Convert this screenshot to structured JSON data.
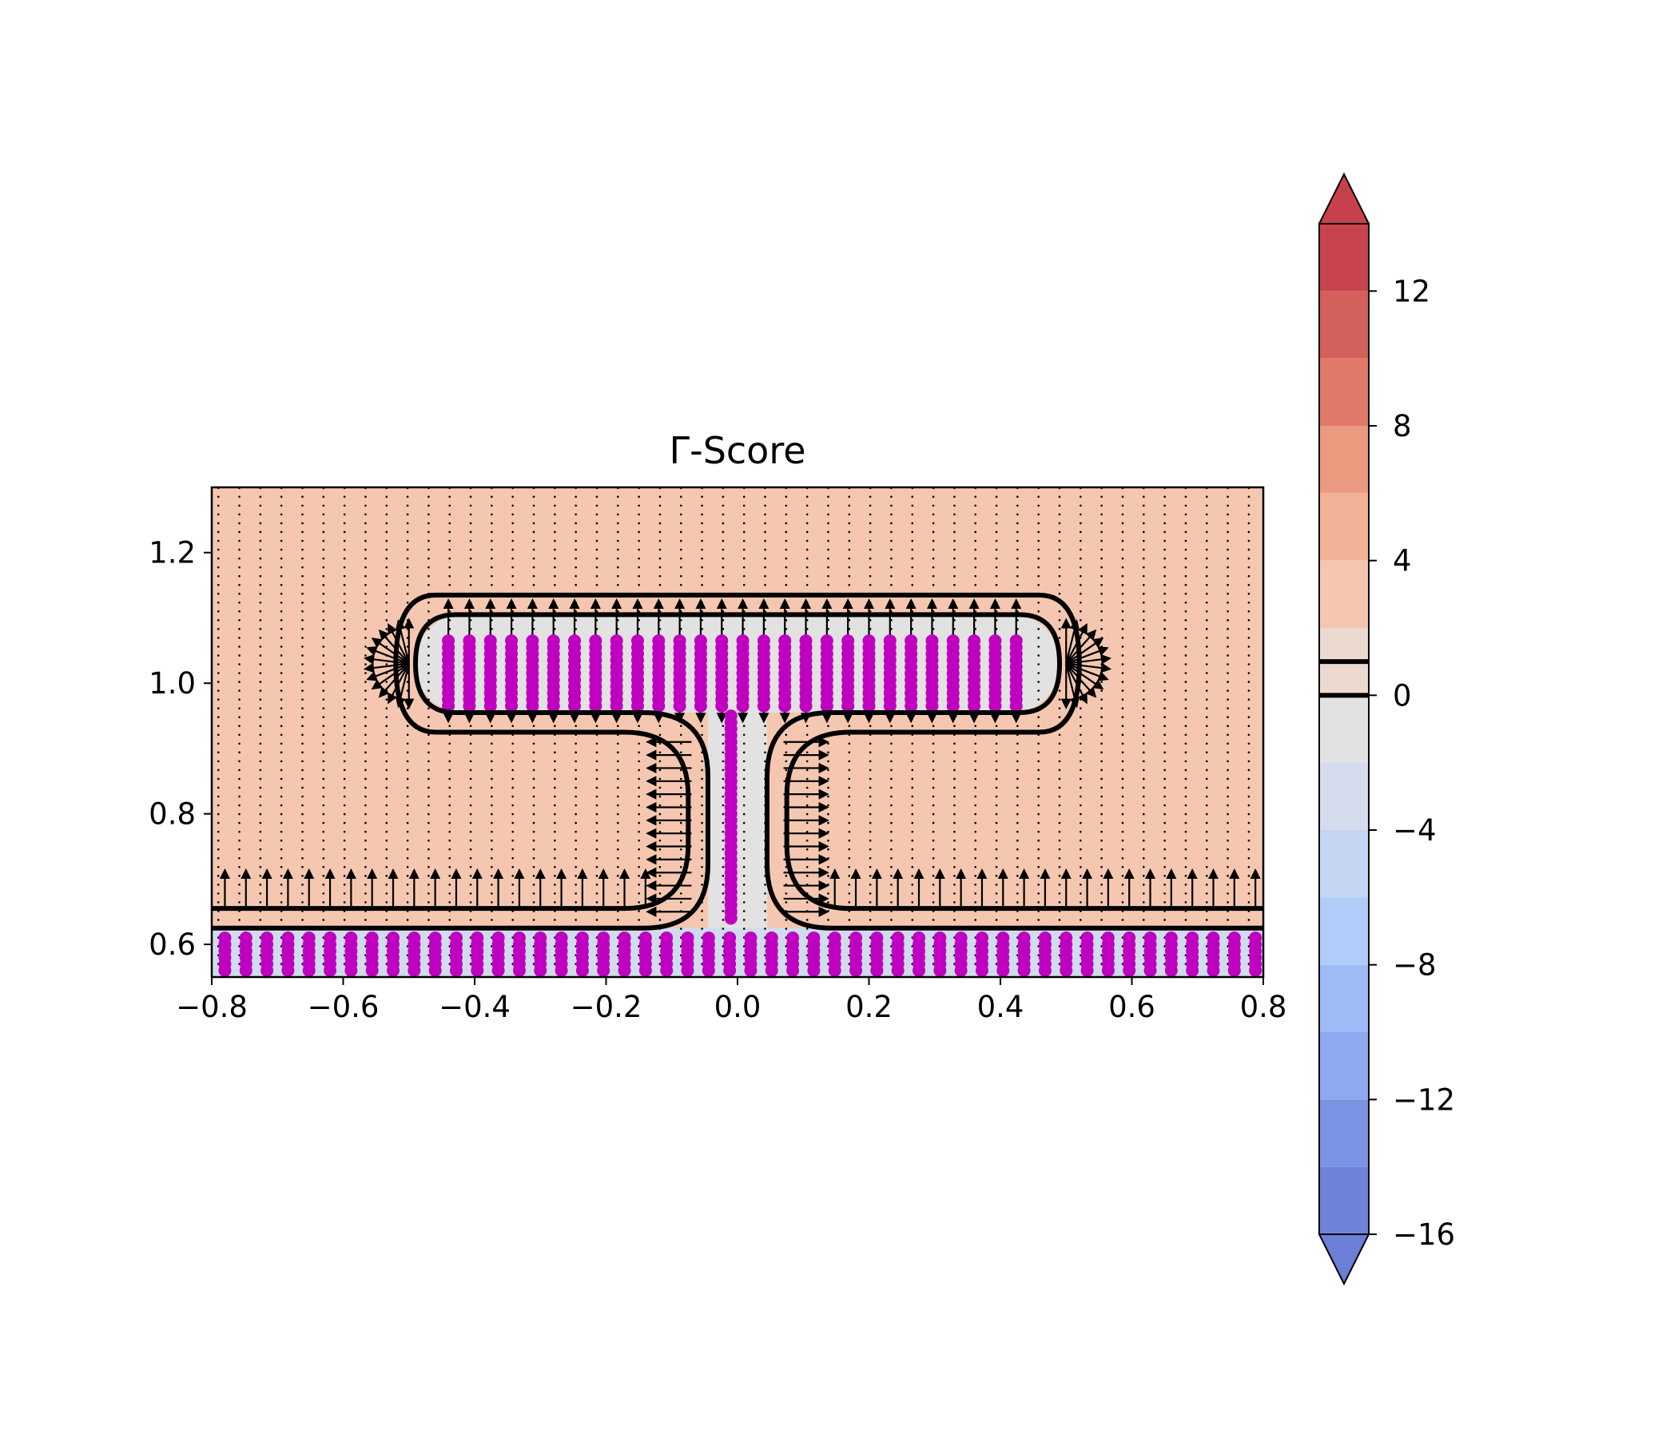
{
  "chart_data": {
    "type": "heatmap",
    "title": "Γ-Score",
    "xlabel": "",
    "ylabel": "",
    "xlim": [
      -0.8,
      0.8
    ],
    "ylim": [
      0.55,
      1.3
    ],
    "x_ticks": [
      "−0.8",
      "−0.6",
      "−0.4",
      "−0.2",
      "0.0",
      "0.2",
      "0.4",
      "0.6",
      "0.8"
    ],
    "x_tick_values": [
      -0.8,
      -0.6,
      -0.4,
      -0.2,
      0.0,
      0.2,
      0.4,
      0.6,
      0.8
    ],
    "y_ticks": [
      "0.6",
      "0.8",
      "1.0",
      "1.2"
    ],
    "y_tick_values": [
      0.6,
      0.8,
      1.0,
      1.2
    ],
    "grid": false,
    "background_level_color": "#f5c7b0",
    "interior_color": "#e2e2e2",
    "bottom_strip_color": "#d0dcee",
    "scatter_color": "#c000c0",
    "contour_color": "#000000",
    "shape_regions": {
      "top_bar": {
        "x_range": [
          -0.49,
          0.49
        ],
        "y_range": [
          0.955,
          1.105
        ]
      },
      "stem": {
        "x_range": [
          -0.045,
          0.045
        ],
        "y_range": [
          0.62,
          0.955
        ]
      },
      "base_surface": {
        "y": 0.625
      }
    },
    "colorbar": {
      "ticks": [
        "12",
        "8",
        "4",
        "0",
        "−4",
        "−8",
        "−12",
        "−16"
      ],
      "tick_values": [
        12,
        8,
        4,
        0,
        -4,
        -8,
        -12,
        -16
      ],
      "range": [
        -16,
        14
      ],
      "extend": "both",
      "zero_contour_lines": [
        1,
        0
      ],
      "levels": [
        {
          "from": 12,
          "to": 14,
          "color": "#c9434f"
        },
        {
          "from": 10,
          "to": 12,
          "color": "#d4605b"
        },
        {
          "from": 8,
          "to": 10,
          "color": "#e0796a"
        },
        {
          "from": 6,
          "to": 8,
          "color": "#eb9a7f"
        },
        {
          "from": 4,
          "to": 6,
          "color": "#f3b297"
        },
        {
          "from": 2,
          "to": 4,
          "color": "#f5c7b0"
        },
        {
          "from": 0,
          "to": 2,
          "color": "#ecd9cf"
        },
        {
          "from": -2,
          "to": 0,
          "color": "#e2e2e2"
        },
        {
          "from": -4,
          "to": -2,
          "color": "#d4dced"
        },
        {
          "from": -6,
          "to": -4,
          "color": "#c5d6f4"
        },
        {
          "from": -8,
          "to": -6,
          "color": "#b2ccfa"
        },
        {
          "from": -10,
          "to": -8,
          "color": "#9fbbf7"
        },
        {
          "from": -12,
          "to": -10,
          "color": "#8fa9f0"
        },
        {
          "from": -14,
          "to": -12,
          "color": "#7b93e3"
        },
        {
          "from": -16,
          "to": -14,
          "color": "#6e82d8"
        }
      ],
      "extend_low_color": "#6b7fd6",
      "extend_high_color": "#c9404d"
    }
  }
}
